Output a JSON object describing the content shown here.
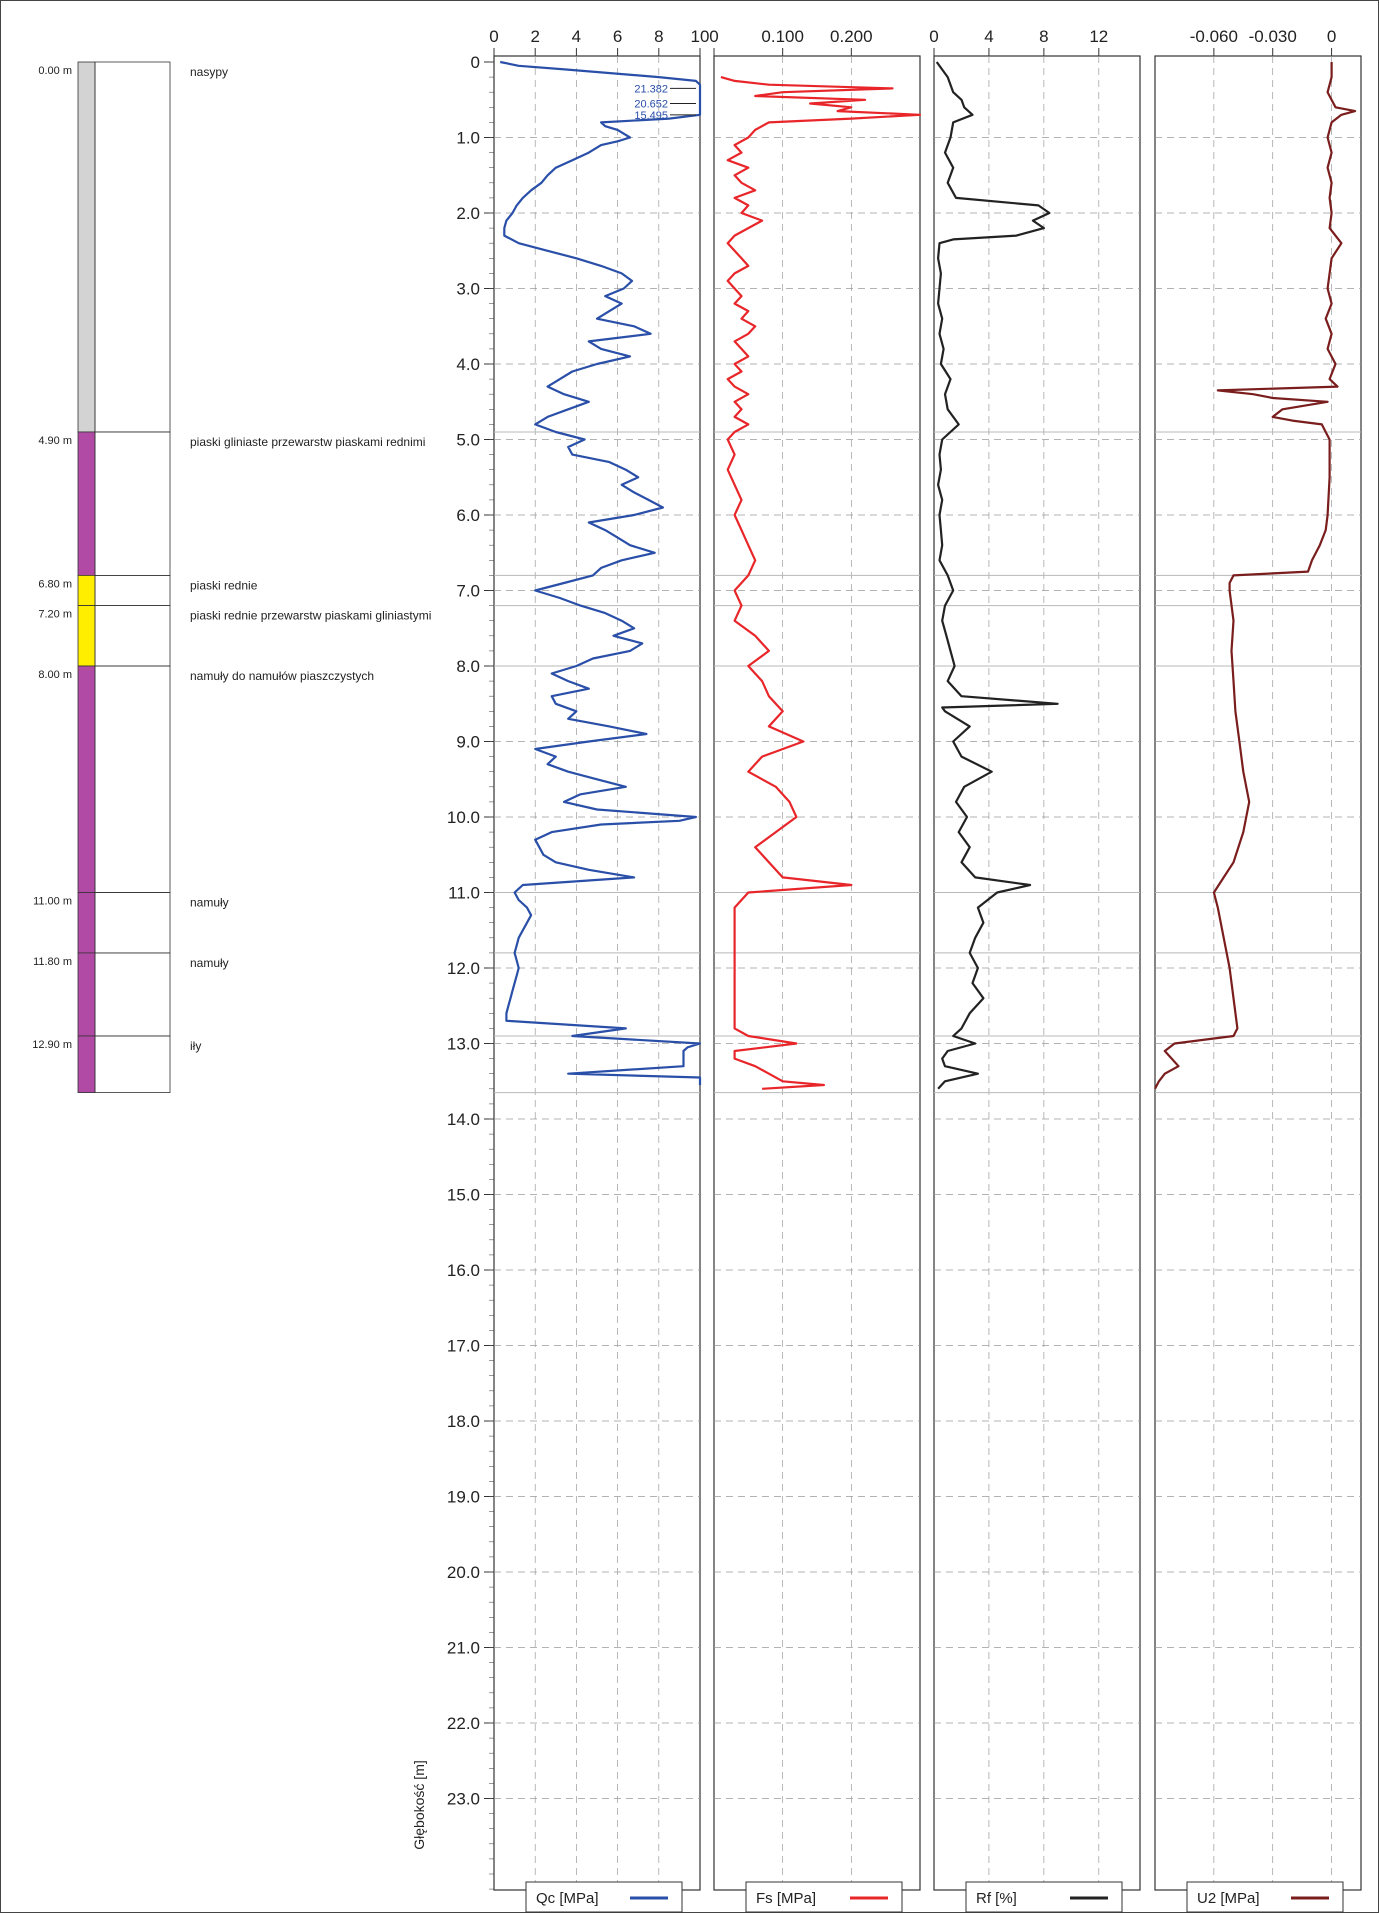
{
  "depth_axis": {
    "label": "Głębokość [m]",
    "ticks": [
      "0",
      "1.0",
      "2.0",
      "3.0",
      "4.0",
      "5.0",
      "6.0",
      "7.0",
      "8.0",
      "9.0",
      "10.0",
      "11.0",
      "12.0",
      "13.0",
      "14.0",
      "15.0",
      "16.0",
      "17.0",
      "18.0",
      "19.0",
      "20.0",
      "21.0",
      "22.0",
      "23.0"
    ]
  },
  "layers": [
    {
      "top_label": "0.00 m",
      "top": 0.0,
      "bottom": 4.9,
      "name": "nasypy",
      "color": "#d3d3d3"
    },
    {
      "top_label": "4.90 m",
      "top": 4.9,
      "bottom": 6.8,
      "name": "piaski gliniaste przewarstw piaskami rednimi",
      "color": "#b04aa5"
    },
    {
      "top_label": "6.80 m",
      "top": 6.8,
      "bottom": 7.2,
      "name": "piaski rednie",
      "color": "#ffee00"
    },
    {
      "top_label": "7.20 m",
      "top": 7.2,
      "bottom": 8.0,
      "name": "piaski rednie przewarstw piaskami gliniastymi",
      "color": "#ffee00"
    },
    {
      "top_label": "8.00 m",
      "top": 8.0,
      "bottom": 11.0,
      "name": "namuły do namułów piaszczystych",
      "color": "#b04aa5"
    },
    {
      "top_label": "11.00 m",
      "top": 11.0,
      "bottom": 11.8,
      "name": "namuły",
      "color": "#b04aa5"
    },
    {
      "top_label": "11.80 m",
      "top": 11.8,
      "bottom": 12.9,
      "name": "namuły",
      "color": "#b04aa5"
    },
    {
      "top_label": "12.90 m",
      "top": 12.9,
      "bottom": 13.65,
      "name": "iły",
      "color": "#b04aa5"
    }
  ],
  "chart_data": [
    {
      "type": "line",
      "name": "Qc [MPa]",
      "legend": "Qc [MPa]",
      "color": "#2a4fa8",
      "xlim": [
        0,
        10
      ],
      "ticks": [
        0,
        2,
        4,
        6,
        8,
        10
      ],
      "tick_labels": [
        "0",
        "2",
        "4",
        "6",
        "8",
        "10"
      ],
      "ylim": [
        0,
        24
      ],
      "annotations": [
        {
          "text": "21.382",
          "depth": 0.35
        },
        {
          "text": "20.652",
          "depth": 0.55
        },
        {
          "text": "15.495",
          "depth": 0.7
        }
      ],
      "depth": [
        0,
        0.05,
        0.1,
        0.2,
        0.25,
        0.3,
        0.4,
        0.5,
        0.6,
        0.7,
        0.75,
        0.8,
        0.85,
        0.9,
        0.95,
        1.0,
        1.05,
        1.1,
        1.2,
        1.3,
        1.4,
        1.5,
        1.6,
        1.7,
        1.8,
        1.9,
        2.0,
        2.1,
        2.2,
        2.3,
        2.4,
        2.5,
        2.6,
        2.7,
        2.8,
        2.9,
        3.0,
        3.1,
        3.2,
        3.3,
        3.4,
        3.5,
        3.6,
        3.7,
        3.8,
        3.9,
        4.0,
        4.1,
        4.2,
        4.3,
        4.4,
        4.5,
        4.6,
        4.7,
        4.8,
        4.9,
        5.0,
        5.1,
        5.2,
        5.3,
        5.4,
        5.5,
        5.6,
        5.7,
        5.8,
        5.9,
        6.0,
        6.1,
        6.2,
        6.3,
        6.4,
        6.5,
        6.6,
        6.7,
        6.8,
        6.9,
        7.0,
        7.1,
        7.2,
        7.3,
        7.4,
        7.5,
        7.6,
        7.7,
        7.8,
        7.9,
        8.0,
        8.1,
        8.2,
        8.3,
        8.4,
        8.5,
        8.6,
        8.7,
        8.8,
        8.9,
        9.0,
        9.1,
        9.2,
        9.3,
        9.4,
        9.5,
        9.6,
        9.7,
        9.8,
        9.9,
        10.0,
        10.05,
        10.1,
        10.2,
        10.3,
        10.4,
        10.5,
        10.6,
        10.7,
        10.8,
        10.9,
        11.0,
        11.1,
        11.2,
        11.3,
        11.4,
        11.5,
        11.6,
        11.7,
        11.8,
        11.9,
        12.0,
        12.1,
        12.2,
        12.3,
        12.4,
        12.5,
        12.6,
        12.7,
        12.8,
        12.9,
        13.0,
        13.05,
        13.1,
        13.2,
        13.3,
        13.4,
        13.45,
        13.5,
        13.55,
        13.6,
        13.65
      ],
      "values": [
        0.3,
        1.2,
        3.5,
        8.0,
        9.8,
        10.0,
        10.0,
        10.0,
        10.0,
        10.0,
        8.5,
        5.2,
        5.4,
        6.0,
        6.3,
        6.6,
        6.0,
        5.2,
        4.6,
        3.8,
        3.0,
        2.6,
        2.3,
        1.8,
        1.4,
        1.1,
        0.9,
        0.6,
        0.5,
        0.5,
        1.2,
        2.6,
        4.0,
        5.2,
        6.2,
        6.7,
        6.3,
        5.4,
        6.2,
        5.6,
        5.0,
        6.8,
        7.6,
        4.6,
        5.2,
        6.6,
        5.0,
        3.8,
        3.2,
        2.6,
        3.4,
        4.6,
        3.6,
        2.6,
        2.0,
        3.0,
        4.4,
        3.6,
        3.8,
        5.6,
        6.4,
        7.0,
        6.2,
        6.8,
        7.5,
        8.2,
        6.8,
        4.6,
        5.4,
        6.0,
        6.6,
        7.8,
        6.2,
        5.2,
        4.8,
        3.4,
        2.0,
        3.2,
        4.2,
        5.4,
        6.2,
        6.8,
        5.8,
        7.2,
        6.6,
        4.8,
        4.0,
        2.8,
        3.6,
        4.6,
        2.8,
        3.0,
        4.0,
        3.6,
        5.6,
        7.4,
        4.6,
        2.0,
        3.0,
        2.6,
        3.6,
        5.0,
        6.4,
        4.2,
        3.4,
        5.0,
        9.8,
        9.0,
        5.2,
        2.8,
        2.0,
        2.2,
        2.4,
        3.0,
        4.6,
        6.8,
        1.4,
        1.0,
        1.2,
        1.6,
        1.8,
        1.6,
        1.4,
        1.2,
        1.1,
        1.0,
        1.1,
        1.2,
        1.1,
        1.0,
        0.9,
        0.8,
        0.7,
        0.6,
        0.6,
        6.4,
        3.8,
        10.0,
        9.4,
        9.2,
        9.2,
        9.2,
        3.6,
        10.0,
        10.0,
        10.0
      ]
    },
    {
      "type": "line",
      "name": "Fs [MPa]",
      "legend": "Fs [MPa]",
      "color": "#e8262a",
      "xlim": [
        0,
        0.3
      ],
      "ticks": [
        0,
        0.1,
        0.2
      ],
      "tick_labels": [
        "0",
        "0.100",
        "0.200"
      ],
      "ylim": [
        0,
        24
      ],
      "depth": [
        0.2,
        0.25,
        0.3,
        0.35,
        0.4,
        0.45,
        0.5,
        0.55,
        0.6,
        0.65,
        0.7,
        0.75,
        0.8,
        0.9,
        1.0,
        1.1,
        1.2,
        1.3,
        1.4,
        1.5,
        1.6,
        1.7,
        1.8,
        1.9,
        2.0,
        2.1,
        2.2,
        2.3,
        2.4,
        2.5,
        2.6,
        2.7,
        2.8,
        2.9,
        3.0,
        3.1,
        3.2,
        3.3,
        3.4,
        3.5,
        3.6,
        3.7,
        3.8,
        3.9,
        4.0,
        4.1,
        4.2,
        4.3,
        4.4,
        4.5,
        4.6,
        4.7,
        4.8,
        4.9,
        5.0,
        5.2,
        5.4,
        5.6,
        5.8,
        6.0,
        6.2,
        6.4,
        6.6,
        6.8,
        7.0,
        7.2,
        7.4,
        7.6,
        7.8,
        8.0,
        8.2,
        8.4,
        8.6,
        8.8,
        9.0,
        9.2,
        9.4,
        9.6,
        9.8,
        10.0,
        10.2,
        10.4,
        10.6,
        10.8,
        10.9,
        11.0,
        11.1,
        11.2,
        11.4,
        11.6,
        11.8,
        12.0,
        12.2,
        12.4,
        12.6,
        12.8,
        12.9,
        13.0,
        13.1,
        13.2,
        13.3,
        13.4,
        13.5,
        13.55,
        13.6
      ],
      "values": [
        0.01,
        0.03,
        0.08,
        0.26,
        0.1,
        0.06,
        0.22,
        0.14,
        0.2,
        0.18,
        0.3,
        0.2,
        0.08,
        0.06,
        0.05,
        0.03,
        0.04,
        0.02,
        0.05,
        0.03,
        0.04,
        0.06,
        0.03,
        0.05,
        0.04,
        0.07,
        0.05,
        0.03,
        0.02,
        0.03,
        0.04,
        0.05,
        0.03,
        0.02,
        0.03,
        0.04,
        0.03,
        0.05,
        0.04,
        0.06,
        0.05,
        0.03,
        0.04,
        0.05,
        0.03,
        0.04,
        0.02,
        0.03,
        0.05,
        0.03,
        0.04,
        0.03,
        0.05,
        0.03,
        0.02,
        0.03,
        0.02,
        0.03,
        0.04,
        0.03,
        0.04,
        0.05,
        0.06,
        0.05,
        0.03,
        0.04,
        0.03,
        0.06,
        0.08,
        0.05,
        0.07,
        0.08,
        0.1,
        0.08,
        0.13,
        0.07,
        0.05,
        0.09,
        0.11,
        0.12,
        0.09,
        0.06,
        0.08,
        0.1,
        0.2,
        0.05,
        0.04,
        0.03,
        0.03,
        0.03,
        0.03,
        0.03,
        0.03,
        0.03,
        0.03,
        0.03,
        0.05,
        0.12,
        0.03,
        0.03,
        0.06,
        0.08,
        0.1,
        0.16,
        0.07
      ]
    },
    {
      "type": "line",
      "name": "Rf [%]",
      "legend": "Rf [%]",
      "color": "#222222",
      "xlim": [
        0,
        15
      ],
      "ticks": [
        0,
        4,
        8,
        12
      ],
      "tick_labels": [
        "0",
        "4",
        "8",
        "12"
      ],
      "ylim": [
        0,
        24
      ],
      "depth": [
        0.0,
        0.2,
        0.4,
        0.5,
        0.6,
        0.7,
        0.8,
        1.0,
        1.2,
        1.4,
        1.6,
        1.8,
        1.9,
        2.0,
        2.1,
        2.2,
        2.3,
        2.35,
        2.4,
        2.6,
        2.8,
        3.0,
        3.2,
        3.4,
        3.6,
        3.8,
        4.0,
        4.2,
        4.4,
        4.6,
        4.8,
        5.0,
        5.2,
        5.4,
        5.6,
        5.8,
        6.0,
        6.2,
        6.4,
        6.6,
        6.8,
        7.0,
        7.2,
        7.4,
        7.6,
        7.8,
        8.0,
        8.2,
        8.4,
        8.5,
        8.55,
        8.6,
        8.8,
        9.0,
        9.2,
        9.4,
        9.6,
        9.8,
        10.0,
        10.2,
        10.4,
        10.6,
        10.8,
        10.9,
        11.0,
        11.2,
        11.4,
        11.6,
        11.8,
        12.0,
        12.2,
        12.4,
        12.6,
        12.8,
        12.9,
        13.0,
        13.1,
        13.2,
        13.3,
        13.4,
        13.5,
        13.6
      ],
      "values": [
        0.2,
        1.0,
        1.4,
        2.0,
        2.2,
        2.8,
        1.4,
        1.2,
        0.8,
        1.4,
        1.0,
        1.6,
        7.6,
        8.4,
        7.2,
        8.0,
        6.0,
        1.4,
        0.4,
        0.3,
        0.5,
        0.4,
        0.3,
        0.6,
        0.4,
        0.7,
        0.5,
        1.2,
        0.8,
        1.0,
        1.8,
        0.6,
        0.4,
        0.5,
        0.3,
        0.6,
        0.4,
        0.5,
        0.6,
        0.4,
        1.0,
        1.4,
        0.8,
        0.6,
        0.9,
        1.2,
        1.5,
        1.0,
        2.0,
        9.0,
        0.6,
        0.8,
        2.6,
        1.4,
        2.0,
        4.2,
        2.2,
        1.6,
        2.4,
        1.8,
        2.6,
        2.0,
        3.0,
        7.0,
        4.6,
        3.2,
        3.6,
        3.0,
        2.6,
        3.2,
        2.8,
        3.6,
        2.6,
        2.0,
        1.4,
        3.0,
        1.0,
        0.6,
        0.8,
        3.2,
        0.8,
        0.3
      ]
    },
    {
      "type": "line",
      "name": "U2 [MPa]",
      "legend": "U2 [MPa]",
      "color": "#7a1d1d",
      "xlim": [
        -0.09,
        0.015
      ],
      "ticks": [
        -0.06,
        -0.03,
        0
      ],
      "tick_labels": [
        "-0.060",
        "-0.030",
        "0"
      ],
      "ylim": [
        0,
        24
      ],
      "depth": [
        0.0,
        0.2,
        0.4,
        0.6,
        0.65,
        0.7,
        0.8,
        1.0,
        1.2,
        1.4,
        1.6,
        1.8,
        2.0,
        2.2,
        2.4,
        2.6,
        2.8,
        3.0,
        3.2,
        3.4,
        3.6,
        3.8,
        4.0,
        4.2,
        4.3,
        4.35,
        4.4,
        4.45,
        4.5,
        4.6,
        4.7,
        4.75,
        4.8,
        4.9,
        5.0,
        5.5,
        6.0,
        6.2,
        6.4,
        6.6,
        6.75,
        6.8,
        6.9,
        7.0,
        7.4,
        7.8,
        8.2,
        8.6,
        9.0,
        9.4,
        9.8,
        10.2,
        10.6,
        10.8,
        11.0,
        11.2,
        11.6,
        12.0,
        12.4,
        12.8,
        12.9,
        13.0,
        13.1,
        13.3,
        13.4,
        13.5,
        13.6
      ],
      "values": [
        0.0,
        0.0,
        -0.002,
        0.002,
        0.012,
        0.005,
        0.0,
        -0.002,
        0.0,
        -0.002,
        0.0,
        -0.001,
        0.0,
        -0.001,
        0.005,
        0.0,
        -0.001,
        -0.002,
        0.0,
        -0.003,
        0.0,
        -0.002,
        0.002,
        -0.001,
        0.003,
        -0.058,
        -0.04,
        -0.03,
        -0.002,
        -0.025,
        -0.03,
        -0.02,
        -0.005,
        -0.003,
        -0.001,
        -0.001,
        -0.002,
        -0.003,
        -0.006,
        -0.01,
        -0.012,
        -0.05,
        -0.052,
        -0.052,
        -0.05,
        -0.051,
        -0.05,
        -0.049,
        -0.047,
        -0.045,
        -0.042,
        -0.045,
        -0.05,
        -0.055,
        -0.06,
        -0.058,
        -0.055,
        -0.052,
        -0.05,
        -0.048,
        -0.05,
        -0.08,
        -0.085,
        -0.078,
        -0.085,
        -0.088,
        -0.09
      ]
    }
  ]
}
